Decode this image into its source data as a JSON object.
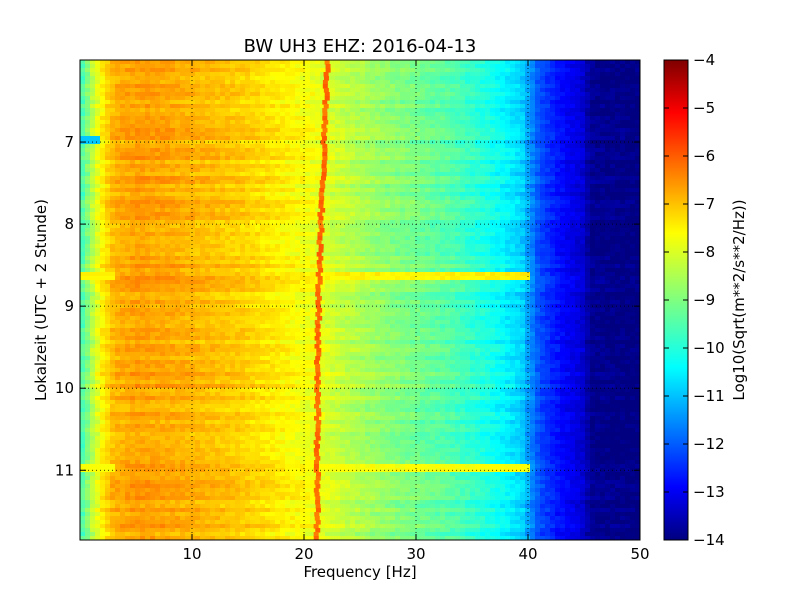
{
  "chart_data": {
    "type": "heatmap",
    "title": "BW UH3 EHZ: 2016-04-13",
    "xlabel": "Frequency [Hz]",
    "ylabel": "Lokalzeit (UTC + 2 Stunde)",
    "xlim": [
      0,
      50
    ],
    "ylim": [
      11.85,
      6.0
    ],
    "y_inverted": true,
    "grid": true,
    "grid_style": "dotted",
    "x_ticks": [
      10,
      20,
      30,
      40,
      50
    ],
    "y_ticks": [
      7,
      8,
      9,
      10,
      11
    ],
    "colormap": "jet",
    "colorbar": {
      "label": "Log10(Sqrt(m**2/s**2/Hz))",
      "range": [
        -14,
        -4
      ],
      "ticks": [
        -14,
        -13,
        -12,
        -11,
        -10,
        -9,
        -8,
        -7,
        -6,
        -5,
        -4
      ]
    },
    "z_profile": {
      "frequency_hz": [
        0,
        0.5,
        1,
        2,
        3,
        5,
        8,
        12,
        15,
        18,
        20,
        21,
        22,
        24,
        27,
        30,
        33,
        36,
        38,
        39.5,
        41,
        43,
        45,
        45.5,
        50
      ],
      "log10_amplitude": [
        -9.6,
        -9.2,
        -8.5,
        -7.6,
        -7.0,
        -6.8,
        -6.9,
        -7.1,
        -7.3,
        -7.6,
        -7.8,
        -7.9,
        -8.1,
        -8.4,
        -8.8,
        -9.1,
        -9.4,
        -9.9,
        -10.3,
        -10.7,
        -12.0,
        -12.7,
        -13.2,
        -13.8,
        -14.0
      ]
    },
    "peak_line": {
      "description_freq_hz": [
        22.1,
        21.8,
        21.5,
        21.3,
        21.2,
        21.2
      ],
      "time": [
        6.0,
        7.0,
        8.0,
        9.0,
        10.0,
        11.85
      ],
      "log10_amplitude": -6.3
    },
    "event_rows": [
      {
        "time": 6.95,
        "freq_range": [
          0,
          2
        ],
        "log10_amplitude": -10.8
      },
      {
        "time": 8.6,
        "freq_range": [
          0,
          40
        ],
        "log10_amplitude": -7.6
      },
      {
        "time": 8.63,
        "freq_range": [
          0,
          40
        ],
        "log10_amplitude": -7.7
      },
      {
        "time": 10.95,
        "freq_range": [
          0,
          40
        ],
        "log10_amplitude": -7.8
      }
    ]
  }
}
